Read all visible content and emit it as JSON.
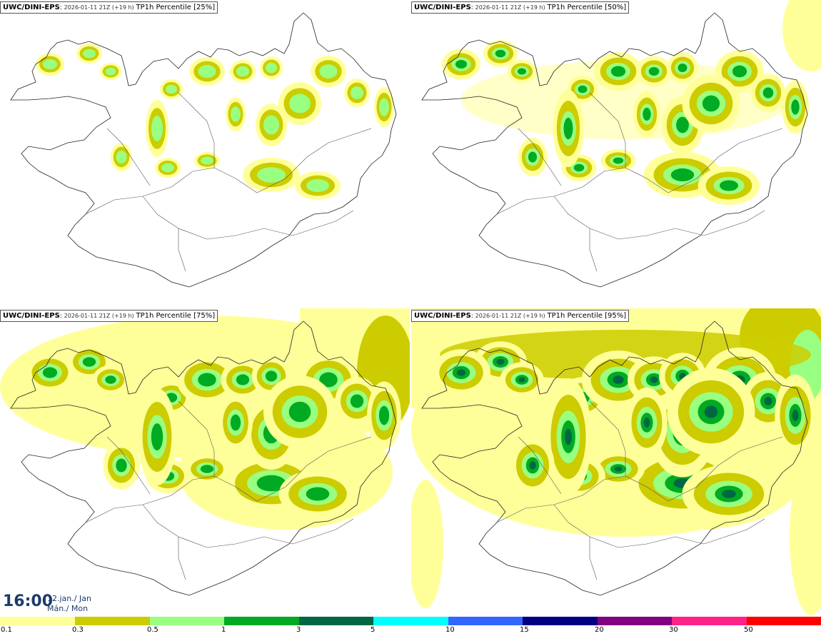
{
  "panels": [
    {
      "source": "UWC/DINI-EPS",
      "date": "2026-01-11 21Z (+19 h)",
      "variable": "TP1h Percentile [25%]",
      "level": 0
    },
    {
      "source": "UWC/DINI-EPS",
      "date": "2026-01-11 21Z (+19 h)",
      "variable": "TP1h Percentile [50%]",
      "level": 1
    },
    {
      "source": "UWC/DINI-EPS",
      "date": "2026-01-11 21Z (+19 h)",
      "variable": "TP1h Percentile [75%]",
      "level": 2
    },
    {
      "source": "UWC/DINI-EPS",
      "date": "2026-01-11 21Z (+19 h)",
      "variable": "TP1h Percentile [95%]",
      "level": 3
    }
  ],
  "valid_time": {
    "time": "16:00",
    "day_line1": "12.jan./ Jan",
    "day_line2": "Mán./ Mon"
  },
  "legend": {
    "ticks": [
      "0.1",
      "0.3",
      "0.5",
      "1",
      "3",
      "5",
      "10",
      "15",
      "20",
      "30",
      "50"
    ],
    "colors": [
      "#ffff99",
      "#cccc00",
      "#99ff80",
      "#00aa22",
      "#006644",
      "#00ffff",
      "#3366ff",
      "#000080",
      "#800080",
      "#ff2288",
      "#ff0000"
    ]
  },
  "palette": {
    "p01": "#ffff99",
    "p03": "#cccc00",
    "p05": "#99ff80",
    "p1": "#00aa22",
    "p3": "#006644"
  }
}
